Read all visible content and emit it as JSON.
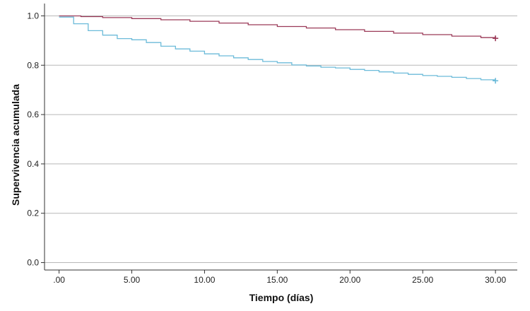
{
  "chart_data": {
    "type": "line",
    "step": true,
    "xlabel": "Tiempo (días)",
    "ylabel": "Supervivencia acumulada",
    "xlim": [
      -1,
      31.5
    ],
    "ylim": [
      -0.03,
      1.05
    ],
    "x_ticks": [
      0,
      5,
      10,
      15,
      20,
      25,
      30
    ],
    "x_tick_labels": [
      ".00",
      "5.00",
      "10.00",
      "15.00",
      "20.00",
      "25.00",
      "30.00"
    ],
    "y_ticks": [
      0.0,
      0.2,
      0.4,
      0.6,
      0.8,
      1.0
    ],
    "y_tick_labels": [
      "0.0",
      "0.2",
      "0.4",
      "0.6",
      "0.8",
      "1.0"
    ],
    "grid": "horizontal",
    "series": [
      {
        "color": "#9b3a58",
        "censor_marker": "+",
        "points": [
          [
            0,
            1.0
          ],
          [
            1.5,
            0.997
          ],
          [
            3,
            0.993
          ],
          [
            5,
            0.989
          ],
          [
            7,
            0.984
          ],
          [
            9,
            0.978
          ],
          [
            11,
            0.971
          ],
          [
            13,
            0.964
          ],
          [
            15,
            0.957
          ],
          [
            17,
            0.951
          ],
          [
            19,
            0.944
          ],
          [
            21,
            0.937
          ],
          [
            23,
            0.93
          ],
          [
            25,
            0.924
          ],
          [
            27,
            0.918
          ],
          [
            29,
            0.912
          ],
          [
            30,
            0.909
          ]
        ],
        "censor_points": [
          [
            30,
            0.909
          ]
        ]
      },
      {
        "color": "#6cbbd9",
        "censor_marker": "+",
        "points": [
          [
            0,
            0.995
          ],
          [
            1,
            0.968
          ],
          [
            2,
            0.94
          ],
          [
            3,
            0.922
          ],
          [
            4,
            0.908
          ],
          [
            5,
            0.903
          ],
          [
            6,
            0.892
          ],
          [
            7,
            0.877
          ],
          [
            8,
            0.866
          ],
          [
            9,
            0.857
          ],
          [
            10,
            0.846
          ],
          [
            11,
            0.838
          ],
          [
            12,
            0.83
          ],
          [
            13,
            0.823
          ],
          [
            14,
            0.815
          ],
          [
            15,
            0.81
          ],
          [
            16,
            0.801
          ],
          [
            17,
            0.797
          ],
          [
            18,
            0.792
          ],
          [
            19,
            0.789
          ],
          [
            20,
            0.783
          ],
          [
            21,
            0.779
          ],
          [
            22,
            0.773
          ],
          [
            23,
            0.768
          ],
          [
            24,
            0.763
          ],
          [
            25,
            0.758
          ],
          [
            26,
            0.755
          ],
          [
            27,
            0.751
          ],
          [
            28,
            0.746
          ],
          [
            29,
            0.741
          ],
          [
            30,
            0.737
          ]
        ],
        "censor_points": [
          [
            30,
            0.737
          ]
        ]
      }
    ]
  }
}
